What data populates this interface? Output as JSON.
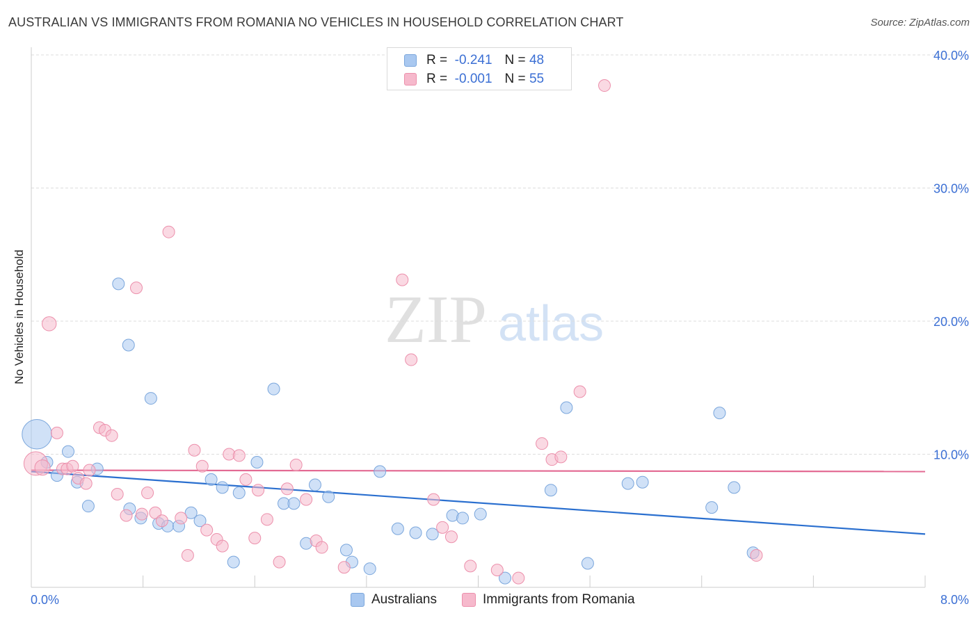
{
  "header": {
    "title": "AUSTRALIAN VS IMMIGRANTS FROM ROMANIA NO VEHICLES IN HOUSEHOLD CORRELATION CHART",
    "source": "Source: ZipAtlas.com"
  },
  "watermark": {
    "zip": "ZIP",
    "atlas": "atlas"
  },
  "stats": {
    "r_label": "R =",
    "n_label": "N =",
    "rows": [
      {
        "r": "-0.241",
        "n": "48",
        "color": "#a9c8f0"
      },
      {
        "r": "-0.001",
        "n": "55",
        "color": "#f6b9cc"
      }
    ]
  },
  "chart_data": {
    "type": "scatter",
    "title": "AUSTRALIAN VS IMMIGRANTS FROM ROMANIA NO VEHICLES IN HOUSEHOLD CORRELATION CHART",
    "xlabel": "",
    "ylabel": "No Vehicles in Household",
    "xlim": [
      0,
      8
    ],
    "ylim": [
      0,
      40
    ],
    "x_tick_labels": [
      "0.0%",
      "8.0%"
    ],
    "y_ticks": [
      10,
      20,
      30,
      40
    ],
    "y_tick_labels": [
      "10.0%",
      "20.0%",
      "30.0%",
      "40.0%"
    ],
    "grid": true,
    "series": [
      {
        "name": "Australians",
        "color": "#a9c8f0",
        "stroke": "#7aa6dc",
        "line_color": "#2a6fcf",
        "trend": [
          [
            0,
            8.7
          ],
          [
            8,
            4.0
          ]
        ],
        "points": [
          [
            0.05,
            11.5,
            2.5
          ],
          [
            0.14,
            9.4,
            1
          ],
          [
            0.23,
            8.4,
            1
          ],
          [
            0.33,
            10.2,
            1
          ],
          [
            0.41,
            7.9,
            1
          ],
          [
            0.51,
            6.1,
            1
          ],
          [
            0.59,
            8.9,
            1
          ],
          [
            0.78,
            22.8,
            1
          ],
          [
            0.87,
            18.2,
            1
          ],
          [
            0.88,
            5.9,
            1
          ],
          [
            0.98,
            5.2,
            1
          ],
          [
            1.07,
            14.2,
            1
          ],
          [
            1.14,
            4.8,
            1
          ],
          [
            1.22,
            4.6,
            1
          ],
          [
            1.32,
            4.6,
            1
          ],
          [
            1.43,
            5.6,
            1
          ],
          [
            1.51,
            5.0,
            1
          ],
          [
            1.61,
            8.1,
            1
          ],
          [
            1.71,
            7.5,
            1
          ],
          [
            1.81,
            1.9,
            1
          ],
          [
            1.86,
            7.1,
            1
          ],
          [
            2.02,
            9.4,
            1
          ],
          [
            2.17,
            14.9,
            1
          ],
          [
            2.26,
            6.3,
            1
          ],
          [
            2.35,
            6.3,
            1
          ],
          [
            2.46,
            3.3,
            1
          ],
          [
            2.54,
            7.7,
            1
          ],
          [
            2.66,
            6.8,
            1
          ],
          [
            2.82,
            2.8,
            1
          ],
          [
            2.87,
            1.9,
            1
          ],
          [
            3.03,
            1.4,
            1
          ],
          [
            3.12,
            8.7,
            1
          ],
          [
            3.28,
            4.4,
            1
          ],
          [
            3.44,
            4.1,
            1
          ],
          [
            3.59,
            4.0,
            1
          ],
          [
            3.77,
            5.4,
            1
          ],
          [
            3.86,
            5.2,
            1
          ],
          [
            4.02,
            5.5,
            1
          ],
          [
            4.24,
            0.7,
            1
          ],
          [
            4.65,
            7.3,
            1
          ],
          [
            4.79,
            13.5,
            1
          ],
          [
            4.98,
            1.8,
            1
          ],
          [
            5.34,
            7.8,
            1
          ],
          [
            5.47,
            7.9,
            1
          ],
          [
            6.09,
            6.0,
            1
          ],
          [
            6.16,
            13.1,
            1
          ],
          [
            6.29,
            7.5,
            1
          ],
          [
            6.46,
            2.6,
            1
          ]
        ]
      },
      {
        "name": "Immigrants from Romania",
        "color": "#f6b9cc",
        "stroke": "#ec8fab",
        "line_color": "#e36a93",
        "trend": [
          [
            0,
            8.8
          ],
          [
            8,
            8.7
          ]
        ],
        "points": [
          [
            0.04,
            9.3,
            2
          ],
          [
            0.1,
            9.0,
            1.3
          ],
          [
            0.16,
            19.8,
            1.2
          ],
          [
            0.23,
            11.6,
            1
          ],
          [
            0.28,
            8.9,
            1
          ],
          [
            0.32,
            8.9,
            1
          ],
          [
            0.37,
            9.1,
            1
          ],
          [
            0.42,
            8.2,
            1
          ],
          [
            0.49,
            7.8,
            1
          ],
          [
            0.52,
            8.8,
            1
          ],
          [
            0.61,
            12.0,
            1
          ],
          [
            0.66,
            11.8,
            1
          ],
          [
            0.72,
            11.4,
            1
          ],
          [
            0.77,
            7.0,
            1
          ],
          [
            0.85,
            5.4,
            1
          ],
          [
            0.94,
            22.5,
            1
          ],
          [
            0.99,
            5.5,
            1
          ],
          [
            1.04,
            7.1,
            1
          ],
          [
            1.11,
            5.6,
            1
          ],
          [
            1.17,
            5.0,
            1
          ],
          [
            1.23,
            26.7,
            1
          ],
          [
            1.34,
            5.2,
            1
          ],
          [
            1.4,
            2.4,
            1
          ],
          [
            1.46,
            10.3,
            1
          ],
          [
            1.53,
            9.1,
            1
          ],
          [
            1.57,
            4.3,
            1
          ],
          [
            1.66,
            3.6,
            1
          ],
          [
            1.71,
            3.1,
            1
          ],
          [
            1.77,
            10.0,
            1
          ],
          [
            1.86,
            9.9,
            1
          ],
          [
            1.92,
            8.1,
            1
          ],
          [
            2.0,
            3.7,
            1
          ],
          [
            2.03,
            7.3,
            1
          ],
          [
            2.11,
            5.1,
            1
          ],
          [
            2.22,
            1.9,
            1
          ],
          [
            2.29,
            7.4,
            1
          ],
          [
            2.37,
            9.2,
            1
          ],
          [
            2.46,
            6.6,
            1
          ],
          [
            2.55,
            3.5,
            1
          ],
          [
            2.6,
            3.0,
            1
          ],
          [
            2.8,
            1.5,
            1
          ],
          [
            3.32,
            23.1,
            1
          ],
          [
            3.4,
            17.1,
            1
          ],
          [
            3.6,
            6.6,
            1
          ],
          [
            3.68,
            4.5,
            1
          ],
          [
            3.76,
            3.8,
            1
          ],
          [
            3.93,
            1.6,
            1
          ],
          [
            4.17,
            1.3,
            1
          ],
          [
            4.36,
            0.7,
            1
          ],
          [
            4.57,
            10.8,
            1
          ],
          [
            4.66,
            9.6,
            1
          ],
          [
            4.74,
            9.8,
            1
          ],
          [
            4.91,
            14.7,
            1
          ],
          [
            5.13,
            37.7,
            1
          ],
          [
            6.49,
            2.4,
            1
          ]
        ]
      }
    ]
  }
}
